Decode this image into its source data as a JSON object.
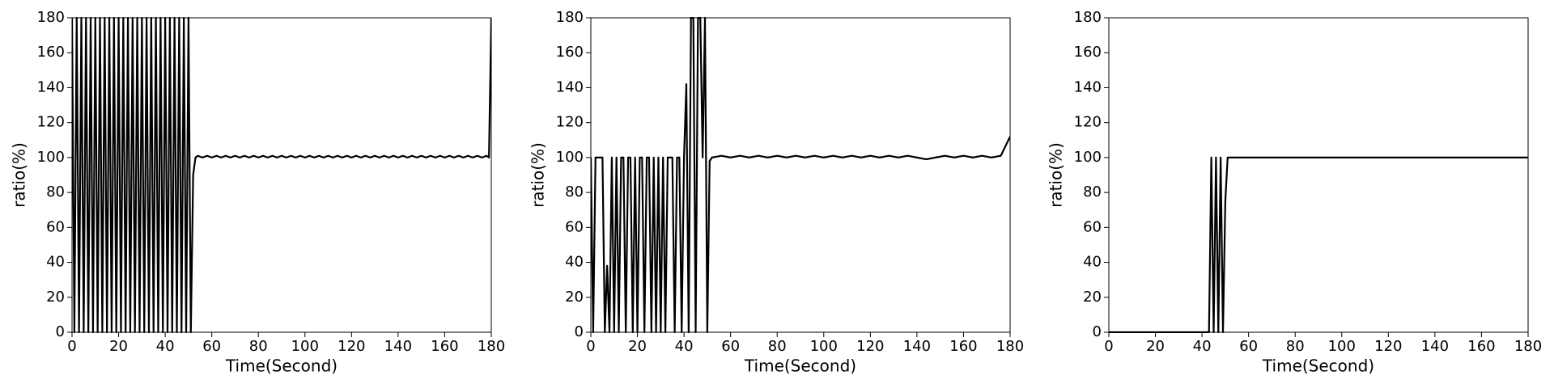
{
  "chart_data": [
    {
      "type": "line",
      "xlabel": "Time(Second)",
      "ylabel": "ratio(%)",
      "xlim": [
        0,
        180
      ],
      "ylim": [
        0,
        180
      ],
      "xticks": [
        0,
        20,
        40,
        60,
        80,
        100,
        120,
        140,
        160,
        180
      ],
      "yticks": [
        0,
        20,
        40,
        60,
        80,
        100,
        120,
        140,
        160,
        180
      ],
      "color": "#000000",
      "x": [
        0,
        1,
        2,
        3,
        4,
        5,
        6,
        7,
        8,
        9,
        10,
        11,
        12,
        13,
        14,
        15,
        16,
        17,
        18,
        19,
        20,
        21,
        22,
        23,
        24,
        25,
        26,
        27,
        28,
        29,
        30,
        31,
        32,
        33,
        34,
        35,
        36,
        37,
        38,
        39,
        40,
        41,
        42,
        43,
        44,
        45,
        46,
        47,
        48,
        49,
        50,
        51,
        52,
        53,
        54,
        56,
        58,
        60,
        62,
        64,
        66,
        68,
        70,
        72,
        74,
        76,
        78,
        80,
        82,
        84,
        86,
        88,
        90,
        92,
        94,
        96,
        98,
        100,
        102,
        104,
        106,
        108,
        110,
        112,
        114,
        116,
        118,
        120,
        122,
        124,
        126,
        128,
        130,
        132,
        134,
        136,
        138,
        140,
        142,
        144,
        146,
        148,
        150,
        152,
        154,
        156,
        158,
        160,
        162,
        164,
        166,
        168,
        170,
        172,
        174,
        176,
        178,
        179,
        180
      ],
      "values": [
        180,
        0,
        180,
        0,
        180,
        0,
        180,
        0,
        180,
        0,
        180,
        0,
        180,
        0,
        180,
        0,
        180,
        0,
        180,
        0,
        180,
        0,
        180,
        0,
        180,
        0,
        180,
        0,
        180,
        0,
        180,
        0,
        180,
        0,
        180,
        0,
        180,
        0,
        180,
        0,
        180,
        0,
        180,
        0,
        180,
        0,
        180,
        0,
        180,
        0,
        180,
        0,
        90,
        100,
        101,
        100,
        101,
        100,
        101,
        100,
        101,
        100,
        101,
        100,
        101,
        100,
        101,
        100,
        101,
        100,
        101,
        100,
        101,
        100,
        101,
        100,
        101,
        100,
        101,
        100,
        101,
        100,
        101,
        100,
        101,
        100,
        101,
        100,
        101,
        100,
        101,
        100,
        101,
        100,
        101,
        100,
        101,
        100,
        101,
        100,
        101,
        100,
        101,
        100,
        101,
        100,
        101,
        100,
        101,
        100,
        101,
        100,
        101,
        100,
        101,
        100,
        101,
        100,
        180
      ]
    },
    {
      "type": "line",
      "xlabel": "Time(Second)",
      "ylabel": "ratio(%)",
      "xlim": [
        0,
        180
      ],
      "ylim": [
        0,
        180
      ],
      "xticks": [
        0,
        20,
        40,
        60,
        80,
        100,
        120,
        140,
        160,
        180
      ],
      "yticks": [
        0,
        20,
        40,
        60,
        80,
        100,
        120,
        140,
        160,
        180
      ],
      "color": "#000000",
      "x": [
        0,
        1,
        2,
        3,
        4,
        5,
        6,
        7,
        8,
        9,
        10,
        11,
        12,
        13,
        14,
        15,
        16,
        17,
        18,
        19,
        20,
        21,
        22,
        23,
        24,
        25,
        26,
        27,
        28,
        29,
        30,
        31,
        32,
        33,
        34,
        35,
        36,
        37,
        38,
        39,
        40,
        41,
        42,
        43,
        44,
        45,
        46,
        47,
        48,
        49,
        50,
        51,
        52,
        56,
        60,
        64,
        68,
        72,
        76,
        80,
        84,
        88,
        92,
        96,
        100,
        104,
        108,
        112,
        116,
        120,
        124,
        128,
        132,
        136,
        140,
        144,
        148,
        152,
        156,
        160,
        164,
        168,
        172,
        176,
        180
      ],
      "values": [
        100,
        0,
        100,
        100,
        100,
        100,
        0,
        38,
        0,
        100,
        0,
        100,
        0,
        100,
        100,
        0,
        100,
        100,
        0,
        100,
        0,
        100,
        100,
        0,
        100,
        100,
        0,
        100,
        0,
        100,
        0,
        100,
        0,
        100,
        100,
        100,
        0,
        100,
        100,
        0,
        100,
        142,
        0,
        180,
        180,
        0,
        180,
        180,
        100,
        180,
        0,
        98,
        100,
        101,
        100,
        101,
        100,
        101,
        100,
        101,
        100,
        101,
        100,
        101,
        100,
        101,
        100,
        101,
        100,
        101,
        100,
        101,
        100,
        101,
        100,
        99,
        100,
        101,
        100,
        101,
        100,
        101,
        100,
        101,
        112
      ]
    },
    {
      "type": "line",
      "xlabel": "Time(Second)",
      "ylabel": "ratio(%)",
      "xlim": [
        0,
        180
      ],
      "ylim": [
        0,
        180
      ],
      "xticks": [
        0,
        20,
        40,
        60,
        80,
        100,
        120,
        140,
        160,
        180
      ],
      "yticks": [
        0,
        20,
        40,
        60,
        80,
        100,
        120,
        140,
        160,
        180
      ],
      "color": "#000000",
      "x": [
        0,
        10,
        20,
        30,
        40,
        43,
        44,
        45,
        46,
        47,
        48,
        49,
        50,
        51,
        60,
        70,
        80,
        90,
        100,
        110,
        120,
        130,
        140,
        150,
        160,
        170,
        180
      ],
      "values": [
        0,
        0,
        0,
        0,
        0,
        0,
        100,
        0,
        100,
        0,
        100,
        0,
        75,
        100,
        100,
        100,
        100,
        100,
        100,
        100,
        100,
        100,
        100,
        100,
        100,
        100,
        100
      ]
    }
  ]
}
